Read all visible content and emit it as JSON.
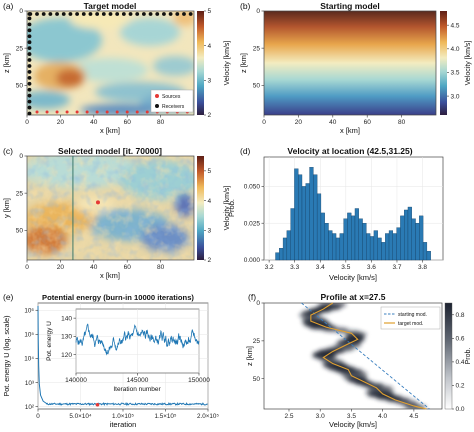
{
  "chart_data": [
    {
      "panel": "(a)",
      "type": "heatmap",
      "title": "Target model",
      "xlabel": "x [km]",
      "ylabel": "z [km]",
      "xlim": [
        0,
        100
      ],
      "ylim": [
        70,
        0
      ],
      "x_ticks": [
        0,
        20,
        40,
        60,
        80
      ],
      "y_ticks": [
        0,
        25,
        50
      ],
      "colorbar": {
        "label": "Velocity [km/s]",
        "ticks": [
          2,
          3,
          4,
          5
        ],
        "range": [
          2,
          5
        ]
      },
      "legend": {
        "placement": "bottom-right",
        "entries": [
          "Sources",
          "Receivers"
        ]
      },
      "receivers": {
        "color": "#111111",
        "x": [
          0,
          0,
          0,
          0,
          0,
          0,
          0,
          0,
          0,
          0,
          0,
          0,
          0,
          0,
          0,
          0,
          0,
          0,
          2,
          6,
          10,
          14,
          18,
          22,
          26,
          30,
          34,
          38,
          42,
          46,
          50,
          54,
          58,
          62,
          66,
          70,
          74,
          78,
          82,
          86,
          90,
          94,
          98
        ],
        "z": [
          5,
          9,
          13,
          17,
          21,
          25,
          29,
          33,
          37,
          41,
          45,
          49,
          53,
          57,
          61,
          65,
          69,
          2,
          2,
          2,
          2,
          2,
          2,
          2,
          2,
          2,
          2,
          2,
          2,
          2,
          2,
          2,
          2,
          2,
          2,
          2,
          2,
          2,
          2,
          2,
          2,
          2,
          2
        ]
      },
      "sources": {
        "color": "#e53935",
        "x": [
          6,
          12,
          18,
          24,
          30,
          36,
          42,
          48,
          54,
          60,
          66,
          72,
          78,
          84,
          90,
          96
        ],
        "z": [
          68,
          68,
          68,
          68,
          68,
          68,
          68,
          68,
          68,
          68,
          68,
          68,
          68,
          68,
          68,
          68
        ]
      }
    },
    {
      "panel": "(b)",
      "type": "heatmap",
      "title": "Starting model",
      "xlabel": "x [km]",
      "ylabel": "z [km]",
      "xlim": [
        0,
        100
      ],
      "ylim": [
        70,
        0
      ],
      "x_ticks": [
        0,
        20,
        40,
        60,
        80
      ],
      "y_ticks": [
        0,
        25,
        50
      ],
      "colorbar": {
        "label": "Velocity [km/s]",
        "ticks": [
          3.0,
          3.5,
          4.0,
          4.5
        ],
        "range": [
          2.6,
          4.8
        ]
      }
    },
    {
      "panel": "(c)",
      "type": "heatmap",
      "title": "Selected model [it. 70000]",
      "xlabel": "x [km]",
      "ylabel": "y [km]",
      "xlim": [
        0,
        100
      ],
      "ylim": [
        70,
        0
      ],
      "x_ticks": [
        0,
        20,
        40,
        60,
        80
      ],
      "y_ticks": [
        0,
        25,
        50
      ],
      "colorbar": {
        "label": "Velocity [km/s]",
        "ticks": [
          2,
          3,
          4,
          5
        ],
        "range": [
          2,
          5.5
        ]
      },
      "profile_line_x": 27.5,
      "marked_point": {
        "x": 42.5,
        "y": 31.25
      }
    },
    {
      "panel": "(d)",
      "type": "bar",
      "title": "Velocity at location (42.5,31.25)",
      "xlabel": "Velocity [km/s]",
      "ylabel": "Prob.",
      "xlim": [
        3.18,
        3.88
      ],
      "ylim": [
        0,
        0.07
      ],
      "x_ticks": [
        3.2,
        3.3,
        3.4,
        3.5,
        3.6,
        3.7,
        3.8
      ],
      "y_ticks": [
        0.0,
        0.025,
        0.05
      ],
      "y_tick_labels": [
        "0.000",
        "0.025",
        "0.050"
      ],
      "bin_start": 3.225,
      "bin_width": 0.0148,
      "values": [
        0.005,
        0.008,
        0.015,
        0.02,
        0.035,
        0.062,
        0.058,
        0.05,
        0.052,
        0.063,
        0.058,
        0.045,
        0.032,
        0.025,
        0.02,
        0.018,
        0.015,
        0.018,
        0.028,
        0.032,
        0.03,
        0.035,
        0.028,
        0.025,
        0.018,
        0.016,
        0.02,
        0.015,
        0.012,
        0.018,
        0.02,
        0.018,
        0.022,
        0.03,
        0.034,
        0.036,
        0.028,
        0.025,
        0.03,
        0.012,
        0.006
      ]
    },
    {
      "panel": "(e)",
      "type": "line",
      "title": "Potential energy (burn-in 10000 iterations)",
      "xlabel": "iteration",
      "ylabel": "Pot. energy U (log. scale)",
      "xlim": [
        0,
        200000
      ],
      "ylim_log": [
        80,
        2000000
      ],
      "x_ticks": [
        0,
        50000,
        100000,
        150000,
        200000
      ],
      "x_tick_labels": [
        "0",
        "5.0×10⁴",
        "1.0×10⁵",
        "1.5×10⁵",
        "2.0×10⁵"
      ],
      "y_ticks": [
        100,
        1000,
        10000,
        100000,
        1000000
      ],
      "y_tick_labels": [
        "10²",
        "10³",
        "10⁴",
        "10⁵",
        "10⁶"
      ],
      "marked_point": {
        "x": 70000,
        "y": 120
      },
      "inset": {
        "xlabel": "Iteration number",
        "ylabel": "Pot. energy U",
        "xlim": [
          140000,
          150000
        ],
        "ylim": [
          110,
          145
        ],
        "x_ticks": [
          140000,
          145000,
          150000
        ],
        "x_tick_labels": [
          "140000",
          "145000",
          "150000"
        ],
        "y_ticks": [
          120,
          130,
          140
        ],
        "mean": 127
      }
    },
    {
      "panel": "(f)",
      "type": "heatmap",
      "title": "Profile at x=27.5",
      "xlabel": "Velocity [km/s]",
      "ylabel": "z [km]",
      "xlim": [
        2.1,
        4.95
      ],
      "ylim": [
        70,
        0
      ],
      "x_ticks": [
        2.5,
        3.0,
        3.5,
        4.0,
        4.5
      ],
      "y_ticks": [
        0,
        25,
        50
      ],
      "colorbar": {
        "label": "Prob.",
        "ticks": [
          0.0,
          0.2,
          0.4,
          0.6,
          0.8
        ],
        "range": [
          0,
          0.9
        ]
      },
      "series": [
        {
          "name": "starting mod.",
          "style": "dashed",
          "color": "#3a7fbf",
          "z": [
            0,
            70
          ],
          "v": [
            2.7,
            4.75
          ]
        },
        {
          "name": "target mod.",
          "style": "solid",
          "color": "#e0a030",
          "z": [
            0,
            4,
            8,
            12,
            16,
            20,
            24,
            28,
            32,
            36,
            40,
            44,
            48,
            52,
            56,
            60,
            64,
            68,
            70
          ],
          "v": [
            3.2,
            3.05,
            2.85,
            2.85,
            3.1,
            3.5,
            3.6,
            3.4,
            3.2,
            3.05,
            3.2,
            3.45,
            3.5,
            3.7,
            3.9,
            4.0,
            4.2,
            4.5,
            4.7
          ]
        }
      ]
    }
  ],
  "panels": {
    "a": {
      "label": "(a)",
      "title": "Target model",
      "xlabel": "x [km]",
      "ylabel": "z [km]",
      "cbar_label": "Velocity [km/s]",
      "legend": [
        "Sources",
        "Receivers"
      ]
    },
    "b": {
      "label": "(b)",
      "title": "Starting model",
      "xlabel": "x [km]",
      "ylabel": "z [km]",
      "cbar_label": "Velocity [km/s]"
    },
    "c": {
      "label": "(c)",
      "title": "Selected model [it. 70000]",
      "xlabel": "x [km]",
      "ylabel": "y [km]",
      "cbar_label": "Velocity [km/s]"
    },
    "d": {
      "label": "(d)",
      "title": "Velocity at location (42.5,31.25)",
      "xlabel": "Velocity [km/s]",
      "ylabel": "Prob."
    },
    "e": {
      "label": "(e)",
      "title": "Potential energy (burn-in 10000 iterations)",
      "xlabel": "iteration",
      "ylabel": "Pot. energy U (log. scale)",
      "inset_xlabel": "Iteration number",
      "inset_ylabel": "Pot. energy U"
    },
    "f": {
      "label": "(f)",
      "title": "Profile at x=27.5",
      "xlabel": "Velocity [km/s]",
      "ylabel": "z [km]",
      "cbar_label": "Prob.",
      "legend": [
        "starting mod.",
        "target mod."
      ]
    }
  },
  "colors": {
    "accent": "#1f77b4",
    "marker_red": "#e53935",
    "axis": "#333333"
  }
}
